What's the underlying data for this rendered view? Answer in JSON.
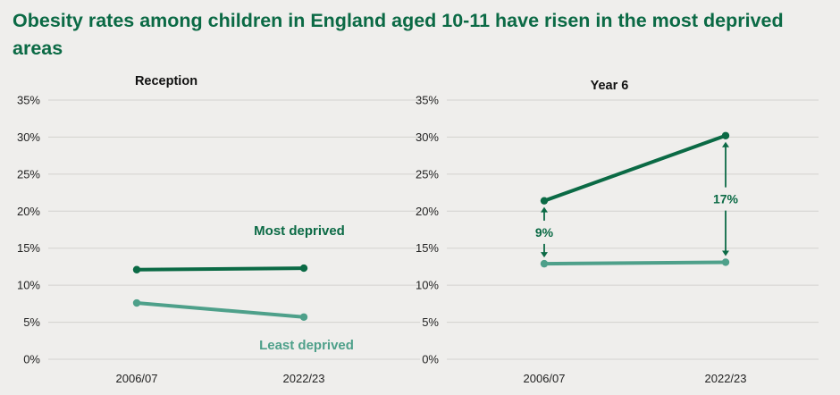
{
  "title": "Obesity rates among children in England aged 10-11 have risen in the most deprived areas",
  "colors": {
    "most_deprived": "#0b6a45",
    "least_deprived": "#4ea08a",
    "background": "#efeeec",
    "grid": "#d3d2cf"
  },
  "chart_data": [
    {
      "type": "line",
      "title": "Reception",
      "categories": [
        "2006/07",
        "2022/23"
      ],
      "ylim": [
        0,
        35
      ],
      "yticks": [
        "0%",
        "5%",
        "10%",
        "15%",
        "20%",
        "25%",
        "30%",
        "35%"
      ],
      "grid": true,
      "series": [
        {
          "name": "Most deprived",
          "values": [
            12.1,
            12.3
          ]
        },
        {
          "name": "Least deprived",
          "values": [
            7.6,
            5.7
          ]
        }
      ],
      "annotations": []
    },
    {
      "type": "line",
      "title": "Year 6",
      "categories": [
        "2006/07",
        "2022/23"
      ],
      "ylim": [
        0,
        35
      ],
      "yticks": [
        "0%",
        "5%",
        "10%",
        "15%",
        "20%",
        "25%",
        "30%",
        "35%"
      ],
      "grid": true,
      "series": [
        {
          "name": "",
          "values": [
            21.4,
            30.2
          ]
        },
        {
          "name": "",
          "values": [
            12.9,
            13.1
          ]
        }
      ],
      "annotations": [
        "9%",
        "17%"
      ]
    }
  ]
}
